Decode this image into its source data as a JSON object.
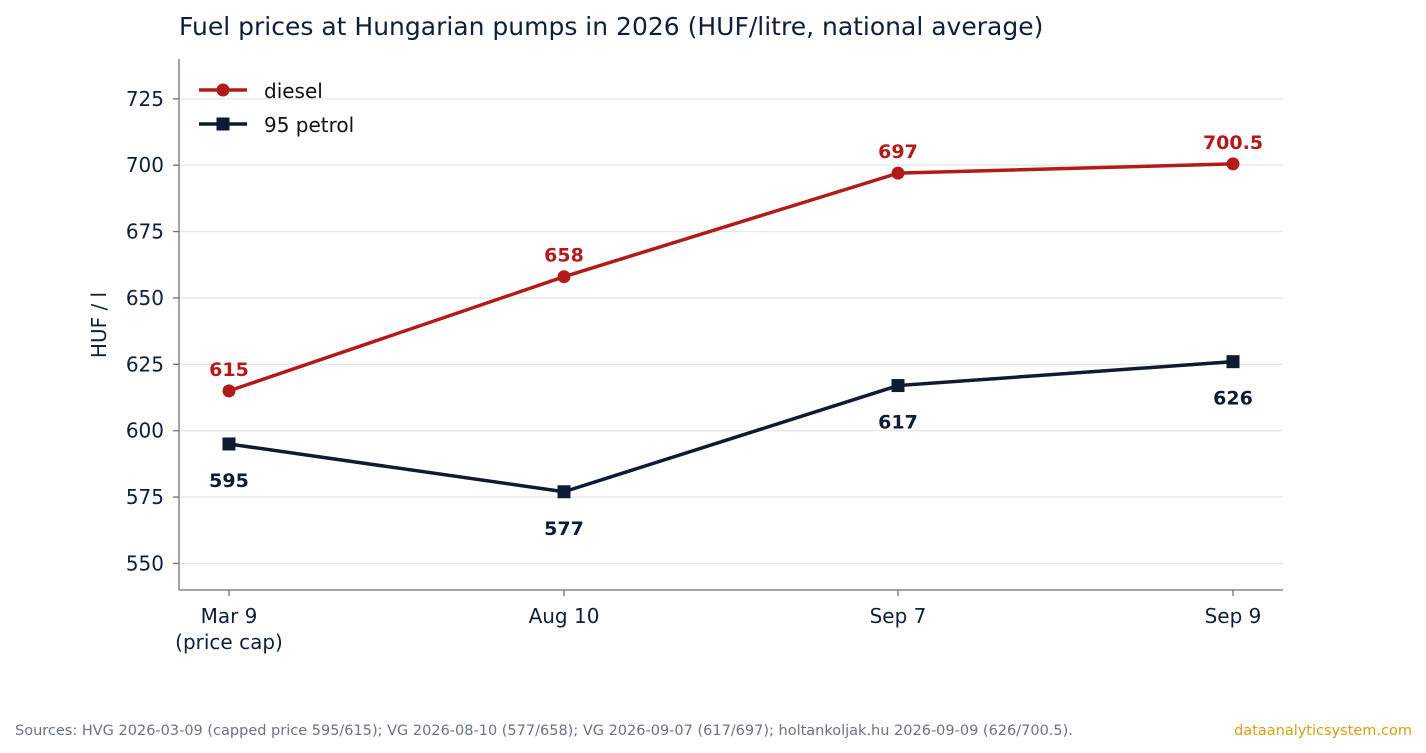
{
  "chart_data": {
    "type": "line",
    "title": "Fuel prices at Hungarian pumps in 2026 (HUF/litre, national average)",
    "xlabel": "",
    "ylabel": "HUF / l",
    "categories": [
      [
        "Mar 9",
        "(price cap)"
      ],
      [
        "Aug 10"
      ],
      [
        "Sep 7"
      ],
      [
        "Sep 9"
      ]
    ],
    "yticks": [
      550,
      575,
      600,
      625,
      650,
      675,
      700,
      725
    ],
    "ylim": [
      540,
      740
    ],
    "grid": "horizontal",
    "legend": "top-left",
    "series": [
      {
        "name": "diesel",
        "values": [
          615,
          658,
          697,
          700.5
        ],
        "labels": [
          "615",
          "658",
          "697",
          "700.5"
        ],
        "color": "#b31b1b",
        "marker": "circle",
        "label_side": "above"
      },
      {
        "name": "95 petrol",
        "values": [
          595,
          577,
          617,
          626
        ],
        "labels": [
          "595",
          "577",
          "617",
          "626"
        ],
        "color": "#0d1b33",
        "marker": "square",
        "label_side": "below"
      }
    ]
  },
  "footer": {
    "sources": "Sources: HVG 2026-03-09 (capped price 595/615); VG 2026-08-10 (577/658); VG 2026-09-07 (617/697); holtankoljak.hu 2026-09-09 (626/700.5).",
    "brand": "dataanalyticsystem.com"
  }
}
